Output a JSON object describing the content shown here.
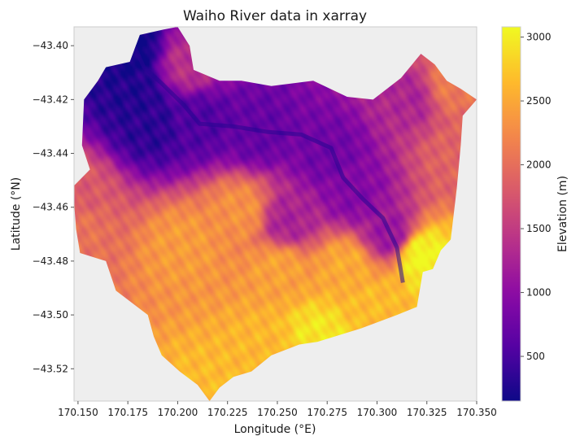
{
  "chart_data": {
    "type": "heatmap",
    "title": "Waiho River data in xarray",
    "xlabel": "Longitude (°E)",
    "ylabel": "Latitude (°N)",
    "xlim": [
      170.148,
      170.35
    ],
    "ylim": [
      -43.532,
      -43.393
    ],
    "xticks": [
      "170.150",
      "170.175",
      "170.200",
      "170.225",
      "170.250",
      "170.275",
      "170.300",
      "170.325",
      "170.350"
    ],
    "yticks": [
      "−43.40",
      "−43.42",
      "−43.44",
      "−43.46",
      "−43.48",
      "−43.50",
      "−43.52"
    ],
    "grid": false,
    "background_color": "#eeeeee",
    "colormap": "plasma",
    "colorbar": {
      "label": "Elevation (m)",
      "vmin": 150,
      "vmax": 3080,
      "ticks": [
        "500",
        "1000",
        "1500",
        "2000",
        "2500",
        "3000"
      ],
      "tick_values": [
        500,
        1000,
        1500,
        2000,
        2500,
        3000
      ]
    },
    "catchment_boundary": [
      [
        170.176,
        -43.406
      ],
      [
        170.181,
        -43.396
      ],
      [
        170.193,
        -43.394
      ],
      [
        170.2,
        -43.393
      ],
      [
        170.206,
        -43.4
      ],
      [
        170.208,
        -43.409
      ],
      [
        170.221,
        -43.413
      ],
      [
        170.232,
        -43.413
      ],
      [
        170.247,
        -43.415
      ],
      [
        170.268,
        -43.413
      ],
      [
        170.285,
        -43.419
      ],
      [
        170.298,
        -43.42
      ],
      [
        170.312,
        -43.412
      ],
      [
        170.322,
        -43.403
      ],
      [
        170.329,
        -43.407
      ],
      [
        170.335,
        -43.413
      ],
      [
        170.342,
        -43.416
      ],
      [
        170.35,
        -43.42
      ],
      [
        170.343,
        -43.426
      ],
      [
        170.342,
        -43.437
      ],
      [
        170.34,
        -43.453
      ],
      [
        170.337,
        -43.472
      ],
      [
        170.332,
        -43.476
      ],
      [
        170.328,
        -43.483
      ],
      [
        170.323,
        -43.484
      ],
      [
        170.32,
        -43.497
      ],
      [
        170.31,
        -43.5
      ],
      [
        170.292,
        -43.505
      ],
      [
        170.27,
        -43.51
      ],
      [
        170.261,
        -43.511
      ],
      [
        170.247,
        -43.515
      ],
      [
        170.237,
        -43.521
      ],
      [
        170.228,
        -43.523
      ],
      [
        170.221,
        -43.527
      ],
      [
        170.216,
        -43.532
      ],
      [
        170.21,
        -43.526
      ],
      [
        170.201,
        -43.521
      ],
      [
        170.192,
        -43.515
      ],
      [
        170.188,
        -43.508
      ],
      [
        170.185,
        -43.5
      ],
      [
        170.169,
        -43.491
      ],
      [
        170.164,
        -43.48
      ],
      [
        170.151,
        -43.477
      ],
      [
        170.149,
        -43.468
      ],
      [
        170.148,
        -43.458
      ],
      [
        170.148,
        -43.452
      ],
      [
        170.156,
        -43.446
      ],
      [
        170.152,
        -43.437
      ],
      [
        170.153,
        -43.42
      ],
      [
        170.16,
        -43.413
      ],
      [
        170.164,
        -43.408
      ]
    ],
    "river_path": [
      [
        170.177,
        -43.398
      ],
      [
        170.183,
        -43.408
      ],
      [
        170.192,
        -43.414
      ],
      [
        170.203,
        -43.422
      ],
      [
        170.211,
        -43.429
      ],
      [
        170.228,
        -43.43
      ],
      [
        170.245,
        -43.432
      ],
      [
        170.262,
        -43.433
      ],
      [
        170.277,
        -43.438
      ],
      [
        170.283,
        -43.449
      ],
      [
        170.293,
        -43.457
      ],
      [
        170.303,
        -43.464
      ],
      [
        170.31,
        -43.475
      ],
      [
        170.313,
        -43.488
      ]
    ],
    "low_points": [
      [
        170.177,
        -43.402,
        150
      ],
      [
        170.178,
        -43.418,
        280
      ],
      [
        170.186,
        -43.429,
        340
      ],
      [
        170.21,
        -43.428,
        560
      ],
      [
        170.24,
        -43.432,
        690
      ],
      [
        170.275,
        -43.44,
        780
      ],
      [
        170.288,
        -43.455,
        940
      ],
      [
        170.306,
        -43.47,
        1120
      ],
      [
        170.318,
        -43.419,
        1280
      ],
      [
        170.255,
        -43.465,
        1250
      ]
    ],
    "high_points": [
      [
        170.322,
        -43.478,
        3080
      ],
      [
        170.271,
        -43.508,
        2950
      ],
      [
        170.335,
        -43.415,
        2100
      ],
      [
        170.217,
        -43.528,
        2650
      ],
      [
        170.244,
        -43.513,
        2620
      ],
      [
        170.298,
        -43.497,
        2650
      ],
      [
        170.15,
        -43.468,
        2050
      ],
      [
        170.251,
        -43.483,
        2450
      ],
      [
        170.203,
        -43.475,
        2400
      ],
      [
        170.205,
        -43.407,
        1400
      ],
      [
        170.232,
        -43.462,
        2320
      ],
      [
        170.285,
        -43.482,
        2520
      ],
      [
        170.341,
        -43.44,
        1900
      ],
      [
        170.15,
        -43.455,
        1800
      ]
    ]
  }
}
